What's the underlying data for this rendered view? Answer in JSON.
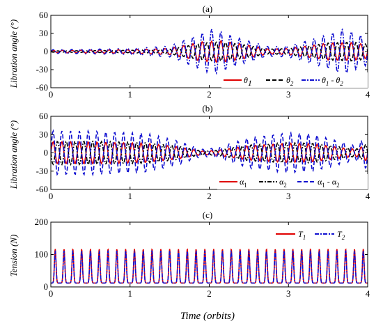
{
  "chart_data": [
    {
      "type": "line",
      "title": "(a)",
      "xlabel": "",
      "ylabel": "Libration angle (°)",
      "xlim": [
        0,
        4
      ],
      "ylim": [
        -60,
        60
      ],
      "xticks": [
        0,
        1,
        2,
        3,
        4
      ],
      "yticks": [
        -60,
        -30,
        0,
        30,
        60
      ],
      "legend_position": "bottom-right",
      "x_sampling": {
        "start": 0,
        "end": 4,
        "step": 0.01
      },
      "series": [
        {
          "name": "θ1",
          "color": "#e00000",
          "style": "solid",
          "frequency_per_orbit": 8.5,
          "peak_amplitude": 18,
          "envelope": [
            [
              0,
              2
            ],
            [
              1,
              3
            ],
            [
              1.5,
              5
            ],
            [
              1.9,
              16
            ],
            [
              2.15,
              18
            ],
            [
              2.4,
              13
            ],
            [
              2.75,
              4
            ],
            [
              3,
              5
            ],
            [
              3.5,
              14
            ],
            [
              3.8,
              15
            ],
            [
              4,
              11
            ]
          ],
          "phase": 0
        },
        {
          "name": "θ2",
          "color": "#000000",
          "style": "dashed",
          "frequency_per_orbit": 8.5,
          "peak_amplitude": 18,
          "envelope": [
            [
              0,
              1
            ],
            [
              1,
              2
            ],
            [
              1.5,
              4
            ],
            [
              1.9,
              14
            ],
            [
              2.15,
              16
            ],
            [
              2.4,
              12
            ],
            [
              2.75,
              4
            ],
            [
              3,
              5
            ],
            [
              3.5,
              14
            ],
            [
              3.8,
              16
            ],
            [
              4,
              12
            ]
          ],
          "phase": 3.14
        },
        {
          "name": "θ1 - θ2",
          "color": "#1010d0",
          "style": "dash-dot",
          "frequency_per_orbit": 8.5,
          "peak_amplitude": 38,
          "envelope": [
            [
              0,
              3
            ],
            [
              1,
              5
            ],
            [
              1.5,
              9
            ],
            [
              1.9,
              30
            ],
            [
              2.05,
              38
            ],
            [
              2.3,
              25
            ],
            [
              2.75,
              8
            ],
            [
              3,
              9
            ],
            [
              3.5,
              28
            ],
            [
              3.7,
              38
            ],
            [
              4,
              22
            ]
          ],
          "phase": 0
        }
      ]
    },
    {
      "type": "line",
      "title": "(b)",
      "xlabel": "",
      "ylabel": "Libration angle (°)",
      "xlim": [
        0,
        4
      ],
      "ylim": [
        -60,
        60
      ],
      "xticks": [
        0,
        1,
        2,
        3,
        4
      ],
      "yticks": [
        -60,
        -30,
        0,
        30,
        60
      ],
      "legend_position": "bottom-right",
      "x_sampling": {
        "start": 0,
        "end": 4,
        "step": 0.01
      },
      "series": [
        {
          "name": "α1",
          "color": "#e00000",
          "style": "solid",
          "frequency_per_orbit": 9,
          "peak_amplitude": 18,
          "envelope": [
            [
              0,
              18
            ],
            [
              0.5,
              18
            ],
            [
              1.2,
              16
            ],
            [
              1.6,
              10
            ],
            [
              1.9,
              3
            ],
            [
              2.1,
              4
            ],
            [
              2.5,
              12
            ],
            [
              3,
              16
            ],
            [
              3.3,
              15
            ],
            [
              3.7,
              8
            ],
            [
              3.85,
              6
            ],
            [
              4,
              14
            ]
          ],
          "phase": 0
        },
        {
          "name": "α2",
          "color": "#000000",
          "style": "dash-dot",
          "frequency_per_orbit": 9,
          "peak_amplitude": 19,
          "envelope": [
            [
              0,
              19
            ],
            [
              0.5,
              19
            ],
            [
              1.2,
              17
            ],
            [
              1.6,
              11
            ],
            [
              1.9,
              3
            ],
            [
              2.1,
              4
            ],
            [
              2.5,
              13
            ],
            [
              3,
              17
            ],
            [
              3.3,
              16
            ],
            [
              3.7,
              9
            ],
            [
              3.85,
              6
            ],
            [
              4,
              15
            ]
          ],
          "phase": 3.14
        },
        {
          "name": "α1 - α2",
          "color": "#1010d0",
          "style": "dashed",
          "frequency_per_orbit": 9,
          "peak_amplitude": 36,
          "envelope": [
            [
              0,
              36
            ],
            [
              0.5,
              36
            ],
            [
              1.2,
              32
            ],
            [
              1.6,
              20
            ],
            [
              1.9,
              6
            ],
            [
              2.1,
              8
            ],
            [
              2.5,
              25
            ],
            [
              3,
              33
            ],
            [
              3.3,
              31
            ],
            [
              3.7,
              17
            ],
            [
              3.85,
              12
            ],
            [
              4,
              28
            ]
          ],
          "phase": 0
        }
      ]
    },
    {
      "type": "line",
      "title": "(c)",
      "xlabel": "Time (orbits)",
      "ylabel": "Tension (N)",
      "xlim": [
        0,
        4
      ],
      "ylim": [
        0,
        200
      ],
      "xticks": [
        0,
        1,
        2,
        3,
        4
      ],
      "yticks": [
        0,
        100,
        200
      ],
      "legend_position": "top-right",
      "x_sampling": {
        "start": 0,
        "end": 4,
        "step": 0.004
      },
      "series": [
        {
          "name": "T1",
          "color": "#e00000",
          "style": "solid",
          "peak_count": 36,
          "peak_value": 117,
          "base_value": 12
        },
        {
          "name": "T2",
          "color": "#1010d0",
          "style": "dash-dot",
          "peak_count": 36,
          "peak_value": 112,
          "base_value": 12
        }
      ]
    }
  ],
  "labels": {
    "title_a": "(a)",
    "title_b": "(b)",
    "title_c": "(c)",
    "ylabel_a": "Libration angle (°)",
    "ylabel_b": "Libration angle (°)",
    "ylabel_c": "Tension (N)",
    "xlabel": "Time (orbits)",
    "leg_a1_main": "θ",
    "leg_a1_sub": "1",
    "leg_a2_main": "θ",
    "leg_a2_sub": "2",
    "leg_a3_m1": "θ",
    "leg_a3_s1": "1",
    "leg_a3_mid": " - θ",
    "leg_a3_s2": "2",
    "leg_b1_main": "α",
    "leg_b1_sub": "1",
    "leg_b2_main": "α",
    "leg_b2_sub": "2",
    "leg_b3_m1": "α",
    "leg_b3_s1": "1",
    "leg_b3_mid": " - α",
    "leg_b3_s2": "2",
    "leg_c1_main": "T",
    "leg_c1_sub": "1",
    "leg_c2_main": "T",
    "leg_c2_sub": "2"
  }
}
